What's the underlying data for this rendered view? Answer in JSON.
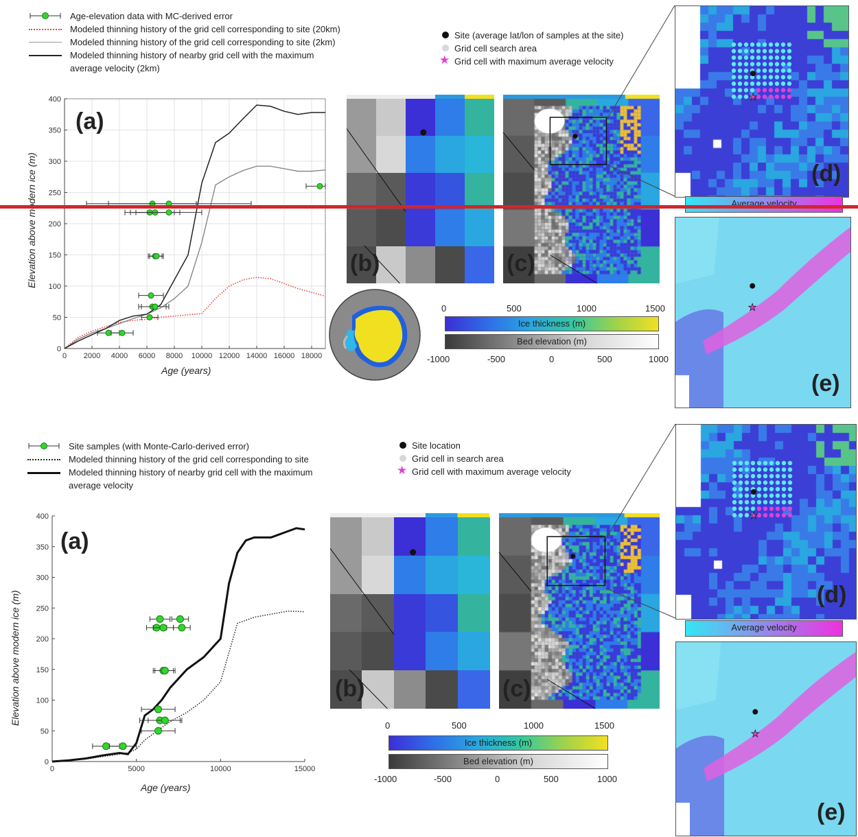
{
  "top": {
    "legend": [
      {
        "key": "green-errorbar",
        "label": "Age-elevation data with MC-derived error"
      },
      {
        "key": "red-dotted",
        "label": "Modeled thinning history of the grid cell corresponding to site (20km)"
      },
      {
        "key": "grey-solid",
        "label": "Modeled thinning history of the grid cell corresponding to site (2km)"
      },
      {
        "key": "black-solid",
        "label": "Modeled thinning history of nearby grid cell with the maximum"
      },
      {
        "key": "none",
        "label": "average velocity (2km)"
      }
    ],
    "panel_a": "(a)",
    "panel_b": "(b)",
    "panel_c": "(c)",
    "panel_d": "(d)",
    "panel_e": "(e)",
    "map_legend": [
      {
        "marker": "black-dot",
        "label": "Site (average lat/lon of samples at the site)"
      },
      {
        "marker": "grey-dot",
        "label": "Grid cell search area"
      },
      {
        "marker": "magenta-star",
        "label": "Grid cell with maximum average velocity"
      }
    ],
    "ice_thickness_label": "Ice thickness (m)",
    "ice_ticks": [
      "0",
      "500",
      "1000",
      "1500"
    ],
    "bed_elevation_label": "Bed elevation (m)",
    "bed_ticks": [
      "-1000",
      "-500",
      "0",
      "500",
      "1000"
    ],
    "velocity_label": "Average velocity"
  },
  "bottom": {
    "legend": [
      {
        "key": "green-errorbar",
        "label": "Site samples (with Monte-Carlo-derived error)"
      },
      {
        "key": "black-dotted",
        "label": "Modeled thinning history of the grid cell corresponding to site"
      },
      {
        "key": "black-thick",
        "label": "Modeled thinning history of nearby grid cell with the maximum"
      },
      {
        "key": "none",
        "label": "average velocity"
      }
    ],
    "panel_a": "(a)",
    "panel_b": "(b)",
    "panel_c": "(c)",
    "panel_d": "(d)",
    "panel_e": "(e)",
    "map_legend": [
      {
        "marker": "black-dot",
        "label": "Site location"
      },
      {
        "marker": "grey-dot",
        "label": "Grid cell in search area"
      },
      {
        "marker": "magenta-star",
        "label": "Grid cell with maximum average velocity"
      }
    ],
    "ice_thickness_label": "Ice thickness (m)",
    "ice_ticks": [
      "0",
      "500",
      "1000",
      "1500"
    ],
    "bed_elevation_label": "Bed elevation (m)",
    "bed_ticks": [
      "-1000",
      "-500",
      "0",
      "500",
      "1000"
    ],
    "velocity_label": "Average velocity"
  },
  "colors": {
    "sample": "#32d62e",
    "red_model": "#e8453c",
    "grey_model": "#808080",
    "black_model": "#222222",
    "ice_low": "#3b2fd6",
    "ice_mid": "#2aa6e0",
    "ice_high": "#f2e020",
    "velocity_low": "#33e6f5",
    "velocity_high": "#f030e0",
    "divider": "#d0262d"
  },
  "chart_data": [
    {
      "type": "line",
      "xlabel": "Age (years)",
      "ylabel": "Elevation above modern ice (m)",
      "xlim": [
        0,
        19000
      ],
      "ylim": [
        0,
        400
      ],
      "x_ticks": [
        0,
        2000,
        4000,
        6000,
        8000,
        10000,
        12000,
        14000,
        16000,
        18000
      ],
      "y_ticks": [
        0,
        50,
        100,
        150,
        200,
        250,
        300,
        350,
        400
      ],
      "grid": true,
      "samples": [
        {
          "x": 3200,
          "y": 25,
          "err": 800
        },
        {
          "x": 4200,
          "y": 25,
          "err": 800
        },
        {
          "x": 6200,
          "y": 50,
          "err": 600
        },
        {
          "x": 6400,
          "y": 67,
          "err": 1000
        },
        {
          "x": 6600,
          "y": 67,
          "err": 1000
        },
        {
          "x": 6300,
          "y": 85,
          "err": 900
        },
        {
          "x": 6600,
          "y": 148,
          "err": 500
        },
        {
          "x": 6700,
          "y": 148,
          "err": 500
        },
        {
          "x": 6200,
          "y": 218,
          "err": 1800
        },
        {
          "x": 6600,
          "y": 218,
          "err": 1800
        },
        {
          "x": 7600,
          "y": 218,
          "err": 2400
        },
        {
          "x": 6400,
          "y": 232,
          "err": 3200
        },
        {
          "x": 7600,
          "y": 232,
          "err": 6000
        },
        {
          "x": 18600,
          "y": 260,
          "err": 1000
        }
      ],
      "series": [
        {
          "style": "red-dotted",
          "x": [
            0,
            1000,
            2000,
            3000,
            4000,
            5000,
            6000,
            7000,
            8000,
            9000,
            10000,
            11000,
            12000,
            13000,
            14000,
            15000,
            16000,
            17000,
            18000,
            19000
          ],
          "y": [
            0,
            18,
            28,
            35,
            42,
            45,
            47,
            50,
            52,
            54,
            56,
            80,
            100,
            110,
            114,
            112,
            104,
            96,
            90,
            84
          ]
        },
        {
          "style": "grey-solid",
          "x": [
            0,
            1000,
            2000,
            3000,
            4000,
            5000,
            6000,
            7000,
            8000,
            9000,
            10000,
            11000,
            12000,
            13000,
            14000,
            15000,
            16000,
            17000,
            18000,
            19000
          ],
          "y": [
            0,
            15,
            25,
            32,
            40,
            48,
            55,
            65,
            80,
            100,
            170,
            262,
            275,
            285,
            292,
            292,
            288,
            284,
            284,
            286
          ]
        },
        {
          "style": "black-solid",
          "x": [
            0,
            1000,
            2000,
            3000,
            4000,
            5000,
            6000,
            7000,
            8000,
            9000,
            10000,
            11000,
            12000,
            13000,
            14000,
            15000,
            16000,
            17000,
            18000,
            19000
          ],
          "y": [
            0,
            12,
            22,
            32,
            45,
            52,
            55,
            70,
            110,
            150,
            265,
            330,
            345,
            368,
            390,
            388,
            380,
            375,
            378,
            378
          ]
        }
      ]
    },
    {
      "type": "line",
      "xlabel": "Age (years)",
      "ylabel": "Elevation above modern ice (m)",
      "xlim": [
        0,
        15000
      ],
      "ylim": [
        0,
        400
      ],
      "x_ticks": [
        0,
        5000,
        10000,
        15000
      ],
      "y_ticks": [
        0,
        50,
        100,
        150,
        200,
        250,
        300,
        350,
        400
      ],
      "grid": false,
      "samples": [
        {
          "x": 3200,
          "y": 25,
          "err": 800
        },
        {
          "x": 4200,
          "y": 25,
          "err": 800
        },
        {
          "x": 6300,
          "y": 50,
          "err": 1000
        },
        {
          "x": 6400,
          "y": 67,
          "err": 1200
        },
        {
          "x": 6700,
          "y": 67,
          "err": 1000
        },
        {
          "x": 6300,
          "y": 85,
          "err": 1000
        },
        {
          "x": 6600,
          "y": 148,
          "err": 600
        },
        {
          "x": 6700,
          "y": 148,
          "err": 600
        },
        {
          "x": 6200,
          "y": 218,
          "err": 600
        },
        {
          "x": 6600,
          "y": 218,
          "err": 600
        },
        {
          "x": 7700,
          "y": 218,
          "err": 500
        },
        {
          "x": 6400,
          "y": 232,
          "err": 600
        },
        {
          "x": 7600,
          "y": 232,
          "err": 500
        }
      ],
      "series": [
        {
          "style": "black-dotted",
          "x": [
            0,
            1000,
            2000,
            3000,
            4000,
            4500,
            5000,
            5500,
            6000,
            7000,
            8000,
            9000,
            10000,
            11000,
            12000,
            13000,
            14000,
            15000
          ],
          "y": [
            0,
            2,
            4,
            8,
            12,
            14,
            20,
            35,
            45,
            65,
            80,
            100,
            130,
            225,
            235,
            240,
            245,
            244
          ]
        },
        {
          "style": "black-thick",
          "x": [
            0,
            1000,
            2000,
            3000,
            4000,
            4500,
            5000,
            5500,
            6000,
            6500,
            7000,
            8000,
            9000,
            10000,
            10500,
            11000,
            11500,
            12000,
            13000,
            14000,
            14500,
            15000
          ],
          "y": [
            0,
            2,
            5,
            10,
            14,
            12,
            30,
            75,
            85,
            100,
            120,
            150,
            170,
            200,
            290,
            340,
            360,
            365,
            365,
            375,
            380,
            378
          ]
        }
      ]
    }
  ]
}
